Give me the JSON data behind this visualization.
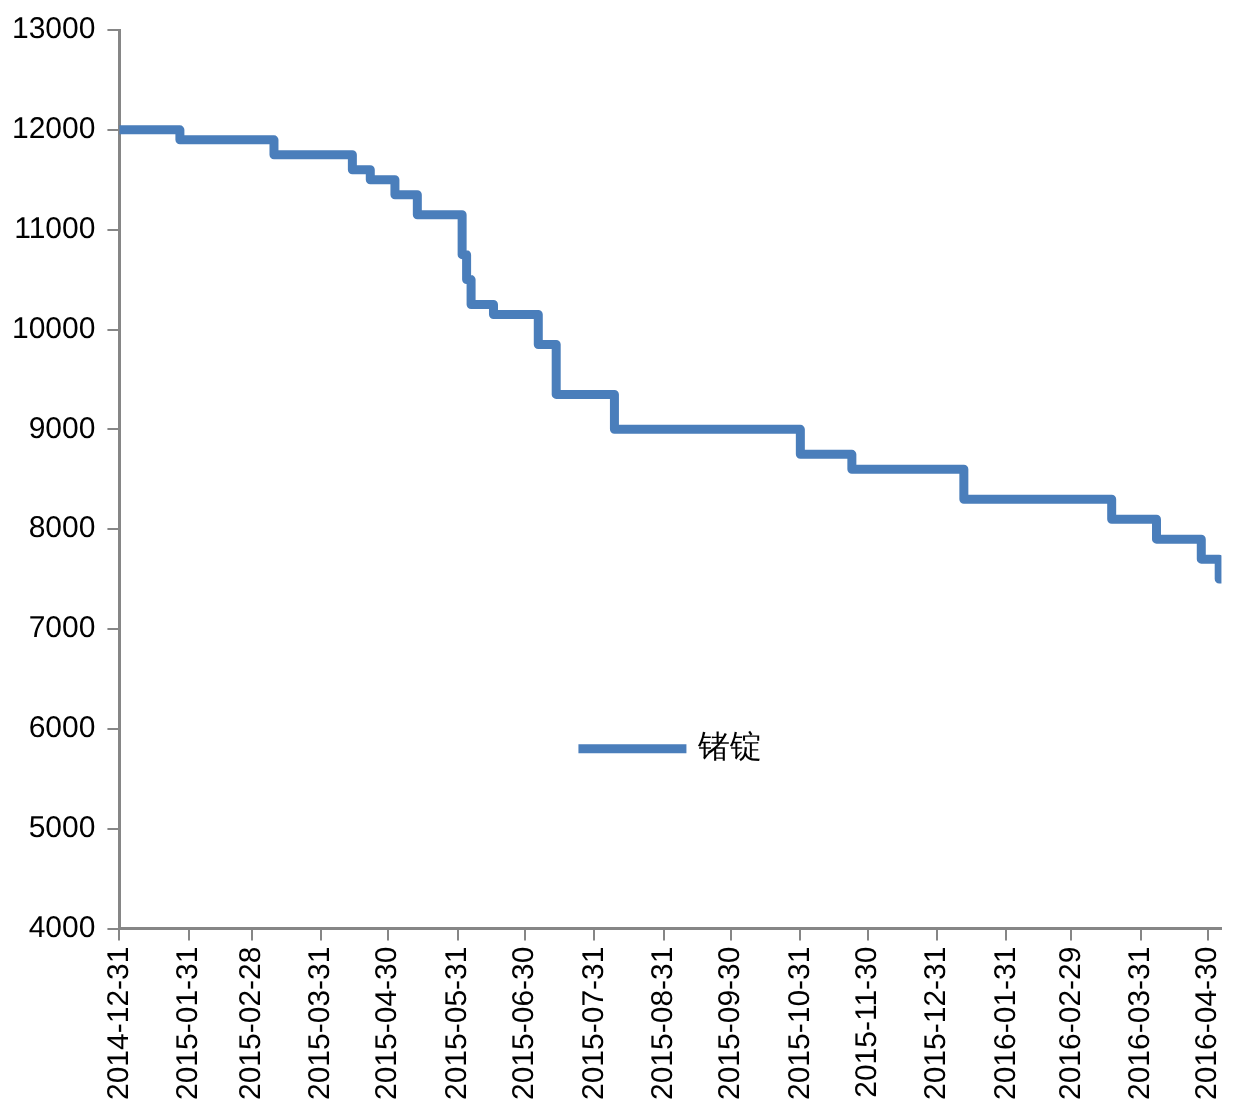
{
  "chart_data": {
    "type": "step",
    "x": [
      "2014-12-31",
      "2015-01-27",
      "2015-03-10",
      "2015-04-14",
      "2015-04-22",
      "2015-05-03",
      "2015-05-13",
      "2015-06-02",
      "2015-06-04",
      "2015-06-06",
      "2015-06-16",
      "2015-07-06",
      "2015-07-14",
      "2015-08-09",
      "2015-10-31",
      "2015-11-23",
      "2016-01-12",
      "2016-03-18",
      "2016-04-07",
      "2016-04-27",
      "2016-05-05",
      "2016-05-06"
    ],
    "series": [
      {
        "name": "锗锭",
        "color": "#4a7ebb",
        "values": [
          12000,
          11900,
          11750,
          11600,
          11500,
          11350,
          11150,
          10750,
          10500,
          10250,
          10150,
          9850,
          9350,
          9000,
          8750,
          8600,
          8300,
          8100,
          7900,
          7700,
          7500,
          7500
        ]
      }
    ],
    "xlim": [
      "2014-12-31",
      "2016-05-06"
    ],
    "xticks": [
      "2014-12-31",
      "2015-01-31",
      "2015-02-28",
      "2015-03-31",
      "2015-04-30",
      "2015-05-31",
      "2015-06-30",
      "2015-07-31",
      "2015-08-31",
      "2015-09-30",
      "2015-10-31",
      "2015-11-30",
      "2015-12-31",
      "2016-01-31",
      "2016-02-29",
      "2016-03-31",
      "2016-04-30"
    ],
    "ylim": [
      4000,
      13000
    ],
    "yticks": [
      4000,
      5000,
      6000,
      7000,
      8000,
      9000,
      10000,
      11000,
      12000,
      13000
    ],
    "grid": false,
    "legend": "center",
    "marker": "none",
    "line_style": "solid"
  }
}
